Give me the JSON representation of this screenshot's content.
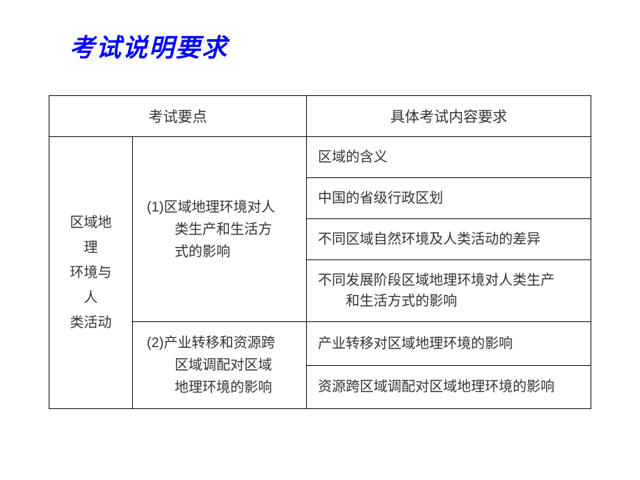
{
  "title": "考试说明要求",
  "table": {
    "headers": {
      "col1": "考试要点",
      "col2": "具体考试内容要求"
    },
    "category": "区域地\n理\n环境与\n人\n类活动",
    "subcategories": [
      {
        "label_line1": "(1)区域地理环境对人",
        "label_line2": "类生产和生活方",
        "label_line3": "式的影响",
        "contents": [
          {
            "text": "区域的含义"
          },
          {
            "text": "中国的省级行政区划"
          },
          {
            "text": "不同区域自然环境及人类活动的差异"
          },
          {
            "text_line1": "不同发展阶段区域地理环境对人类生产",
            "text_line2": "和生活方式的影响"
          }
        ]
      },
      {
        "label_line1": "(2)产业转移和资源跨",
        "label_line2": "区域调配对区域",
        "label_line3": "地理环境的影响",
        "contents": [
          {
            "text": "产业转移对区域地理环境的影响"
          },
          {
            "text": "资源跨区域调配对区域地理环境的影响"
          }
        ]
      }
    ]
  },
  "colors": {
    "title": "#0000ff",
    "text": "#333333",
    "border": "#000000",
    "background": "#ffffff"
  },
  "typography": {
    "title_fontsize": 36,
    "cell_fontsize": 20
  }
}
